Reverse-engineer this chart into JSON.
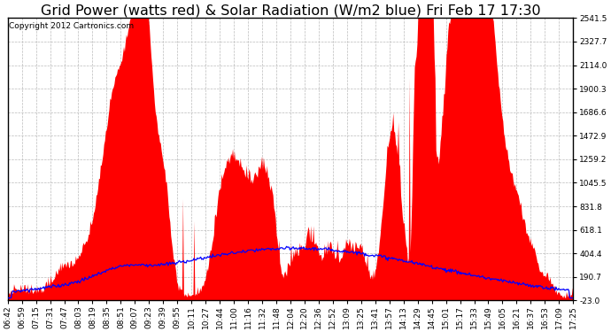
{
  "title": "Grid Power (watts red) & Solar Radiation (W/m2 blue) Fri Feb 17 17:30",
  "copyright_text": "Copyright 2012 Cartronics.com",
  "background_color": "#ffffff",
  "grid_color": "#bbbbbb",
  "y_ticks": [
    -23.0,
    190.7,
    404.4,
    618.1,
    831.8,
    1045.5,
    1259.2,
    1472.9,
    1686.6,
    1900.3,
    2114.0,
    2327.7,
    2541.5
  ],
  "x_tick_labels": [
    "06:42",
    "06:59",
    "07:15",
    "07:31",
    "07:47",
    "08:03",
    "08:19",
    "08:35",
    "08:51",
    "09:07",
    "09:23",
    "09:39",
    "09:55",
    "10:11",
    "10:27",
    "10:44",
    "11:00",
    "11:16",
    "11:32",
    "11:48",
    "12:04",
    "12:20",
    "12:36",
    "12:52",
    "13:09",
    "13:25",
    "13:41",
    "13:57",
    "14:13",
    "14:29",
    "14:45",
    "15:01",
    "15:17",
    "15:33",
    "15:49",
    "16:05",
    "16:21",
    "16:37",
    "16:53",
    "17:09",
    "17:25"
  ],
  "red_fill_color": "#ff0000",
  "blue_line_color": "#0000ff",
  "title_fontsize": 11.5,
  "axis_fontsize": 6.5,
  "copyright_fontsize": 6.5,
  "ymin": -23.0,
  "ymax": 2541.5,
  "n_points": 660
}
